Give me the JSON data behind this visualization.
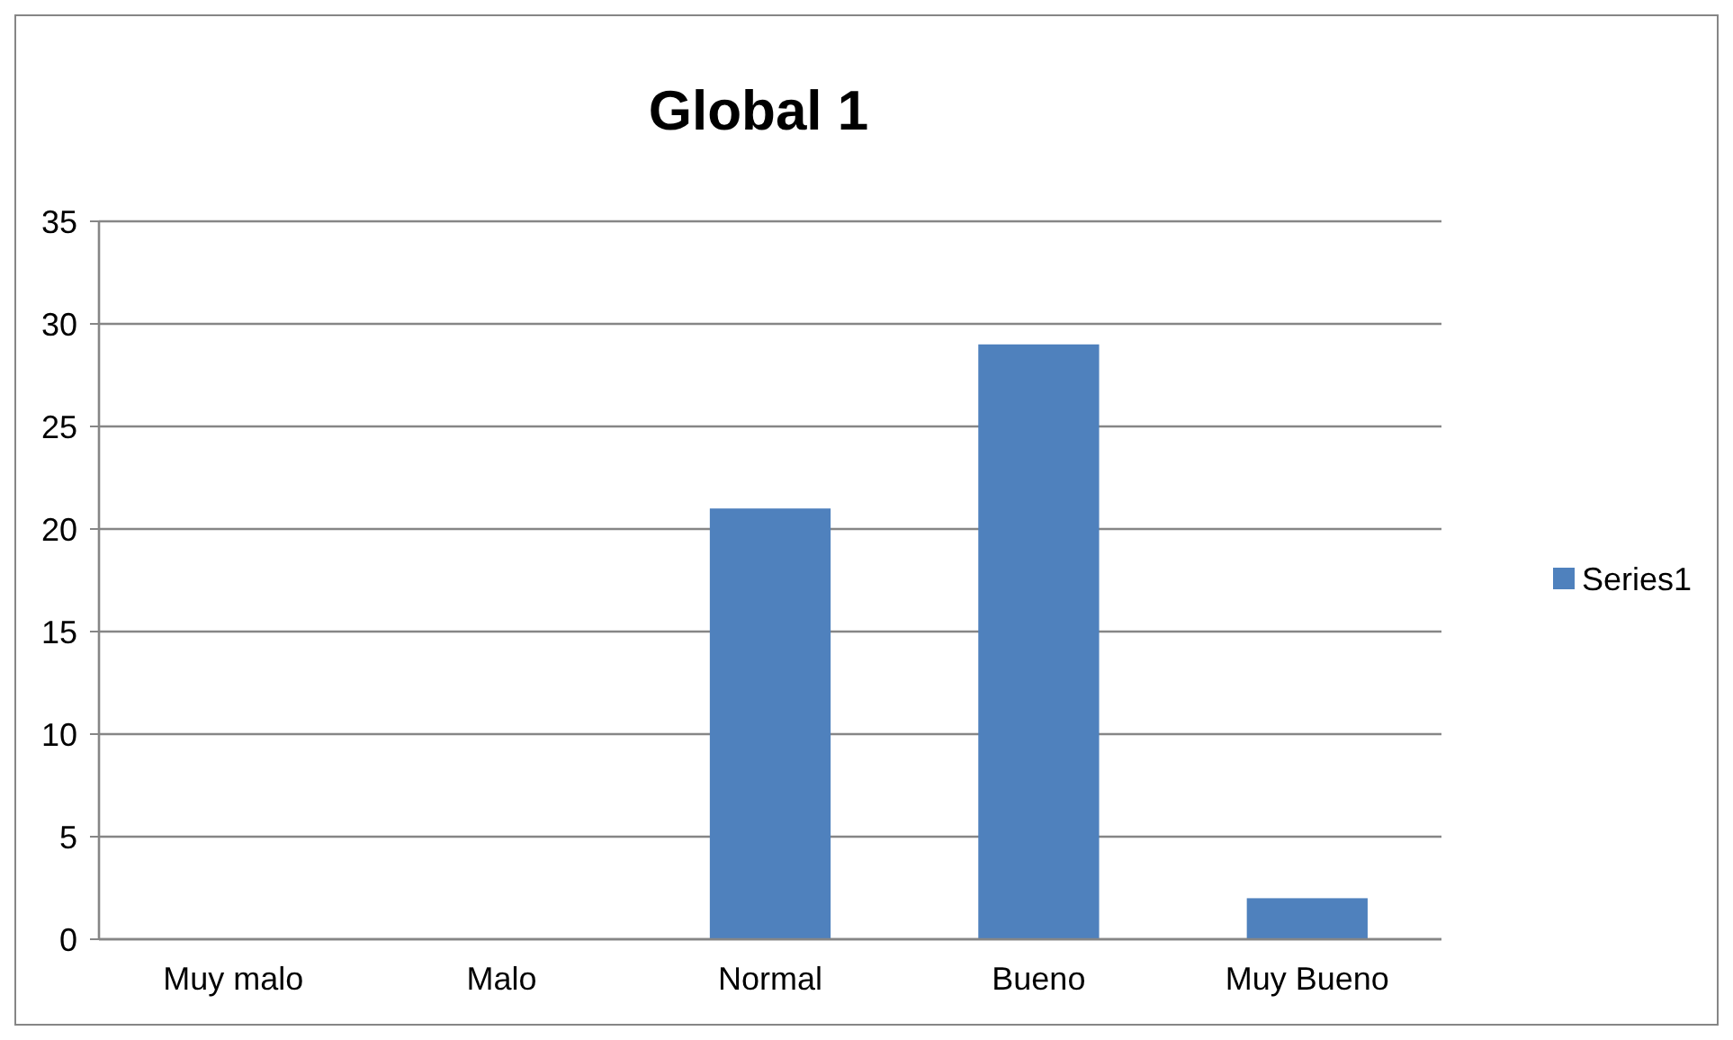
{
  "chart_data": {
    "type": "bar",
    "title": "Global 1",
    "categories": [
      "Muy malo",
      "Malo",
      "Normal",
      "Bueno",
      "Muy Bueno"
    ],
    "series": [
      {
        "name": "Series1",
        "color": "#4f81bd",
        "values": [
          0,
          0,
          21,
          29,
          2
        ]
      }
    ],
    "ylim": [
      0,
      35
    ],
    "yticks": [
      0,
      5,
      10,
      15,
      20,
      25,
      30,
      35
    ],
    "grid": "y",
    "legend": "right"
  }
}
